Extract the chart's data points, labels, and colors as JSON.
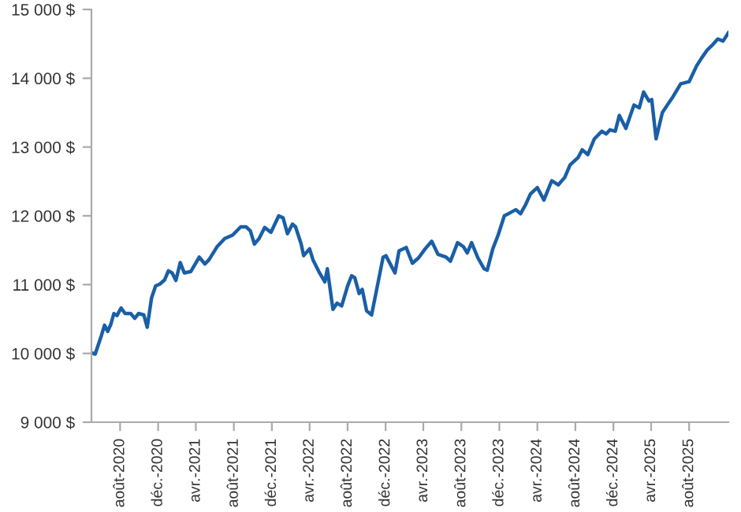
{
  "chart_data": {
    "type": "line",
    "x": [
      "2020-05-01",
      "2020-05-13",
      "2020-06-02",
      "2020-06-12",
      "2020-06-22",
      "2020-07-02",
      "2020-07-12",
      "2020-07-22",
      "2020-08-04",
      "2020-08-17",
      "2020-09-04",
      "2020-09-17",
      "2020-09-29",
      "2020-10-16",
      "2020-10-27",
      "2020-11-10",
      "2020-11-23",
      "2020-12-07",
      "2020-12-22",
      "2021-01-03",
      "2021-01-15",
      "2021-01-27",
      "2021-02-10",
      "2021-02-23",
      "2021-03-16",
      "2021-04-12",
      "2021-04-30",
      "2021-05-13",
      "2021-06-08",
      "2021-07-03",
      "2021-07-28",
      "2021-08-23",
      "2021-09-09",
      "2021-09-23",
      "2021-10-06",
      "2021-10-21",
      "2021-11-08",
      "2021-11-28",
      "2021-12-23",
      "2022-01-06",
      "2022-01-20",
      "2022-02-05",
      "2022-02-15",
      "2022-03-05",
      "2022-03-13",
      "2022-04-01",
      "2022-04-12",
      "2022-05-03",
      "2022-05-20",
      "2022-05-28",
      "2022-06-15",
      "2022-06-28",
      "2022-07-13",
      "2022-08-01",
      "2022-08-14",
      "2022-08-24",
      "2022-09-07",
      "2022-09-17",
      "2022-10-01",
      "2022-10-17",
      "2022-10-29",
      "2022-11-23",
      "2022-12-02",
      "2022-12-31",
      "2023-01-13",
      "2023-02-05",
      "2023-02-25",
      "2023-03-17",
      "2023-04-07",
      "2023-04-28",
      "2023-05-18",
      "2023-06-13",
      "2023-06-27",
      "2023-07-20",
      "2023-08-08",
      "2023-08-20",
      "2023-09-03",
      "2023-09-23",
      "2023-10-13",
      "2023-10-23",
      "2023-11-10",
      "2023-11-27",
      "2023-12-17",
      "2024-01-07",
      "2024-01-23",
      "2024-02-07",
      "2024-02-23",
      "2024-03-10",
      "2024-04-01",
      "2024-04-22",
      "2024-05-17",
      "2024-06-07",
      "2024-06-28",
      "2024-07-15",
      "2024-08-10",
      "2024-08-23",
      "2024-09-10",
      "2024-10-01",
      "2024-10-25",
      "2024-11-08",
      "2024-11-20",
      "2024-12-07",
      "2024-12-20",
      "2025-01-10",
      "2025-02-05",
      "2025-02-22",
      "2025-03-08",
      "2025-03-25",
      "2025-04-03",
      "2025-04-17",
      "2025-05-07",
      "2025-05-23",
      "2025-06-10",
      "2025-07-05",
      "2025-08-01",
      "2025-08-25",
      "2025-09-11",
      "2025-09-28",
      "2025-10-16",
      "2025-11-01",
      "2025-11-18",
      "2025-12-05"
    ],
    "series": [
      {
        "color": "#1a5fa6",
        "values": [
          10010,
          9990,
          10260,
          10410,
          10320,
          10420,
          10580,
          10550,
          10660,
          10580,
          10580,
          10510,
          10580,
          10560,
          10380,
          10810,
          10980,
          11010,
          11070,
          11200,
          11170,
          11060,
          11320,
          11170,
          11190,
          11400,
          11300,
          11360,
          11550,
          11670,
          11720,
          11840,
          11840,
          11780,
          11590,
          11670,
          11830,
          11760,
          12000,
          11970,
          11740,
          11880,
          11840,
          11590,
          11420,
          11520,
          11360,
          11170,
          11040,
          11230,
          10640,
          10730,
          10690,
          10980,
          11130,
          11100,
          10870,
          10930,
          10620,
          10560,
          10830,
          11400,
          11420,
          11170,
          11490,
          11540,
          11310,
          11390,
          11520,
          11630,
          11440,
          11400,
          11340,
          11610,
          11550,
          11460,
          11610,
          11390,
          11230,
          11210,
          11520,
          11720,
          12000,
          12050,
          12090,
          12030,
          12160,
          12320,
          12410,
          12230,
          12510,
          12450,
          12560,
          12740,
          12850,
          12960,
          12890,
          13120,
          13230,
          13190,
          13250,
          13230,
          13460,
          13270,
          13610,
          13570,
          13800,
          13670,
          13690,
          13120,
          13500,
          13610,
          13730,
          13920,
          13950,
          14180,
          14300,
          14410,
          14490,
          14570,
          14540,
          14660
        ]
      }
    ],
    "xlim": [
      "2020-05-01",
      "2025-12-05"
    ],
    "xticks": [
      {
        "value": "2020-08-01",
        "label": "août-2020"
      },
      {
        "value": "2020-12-01",
        "label": "déc.-2020"
      },
      {
        "value": "2021-04-01",
        "label": "avr.-2021"
      },
      {
        "value": "2021-08-01",
        "label": "août-2021"
      },
      {
        "value": "2021-12-01",
        "label": "déc.-2021"
      },
      {
        "value": "2022-04-01",
        "label": "avr.-2022"
      },
      {
        "value": "2022-08-01",
        "label": "août-2022"
      },
      {
        "value": "2022-12-01",
        "label": "déc.-2022"
      },
      {
        "value": "2023-04-01",
        "label": "avr.-2023"
      },
      {
        "value": "2023-08-01",
        "label": "août-2023"
      },
      {
        "value": "2023-12-01",
        "label": "déc.-2023"
      },
      {
        "value": "2024-04-01",
        "label": "avr.-2024"
      },
      {
        "value": "2024-08-01",
        "label": "août-2024"
      },
      {
        "value": "2024-12-01",
        "label": "déc.-2024"
      },
      {
        "value": "2025-04-01",
        "label": "avr.-2025"
      },
      {
        "value": "2025-08-01",
        "label": "août-2025"
      }
    ],
    "ylim": [
      9000,
      15000
    ],
    "yticks": [
      {
        "value": 9000,
        "label": "9 000 $"
      },
      {
        "value": 10000,
        "label": "10 000 $"
      },
      {
        "value": 11000,
        "label": "11 000 $"
      },
      {
        "value": 12000,
        "label": "12 000 $"
      },
      {
        "value": 13000,
        "label": "13 000 $"
      },
      {
        "value": 14000,
        "label": "14 000 $"
      },
      {
        "value": 15000,
        "label": "15 000 $"
      }
    ],
    "grid": false,
    "marker": "none",
    "line_style": "solid"
  }
}
